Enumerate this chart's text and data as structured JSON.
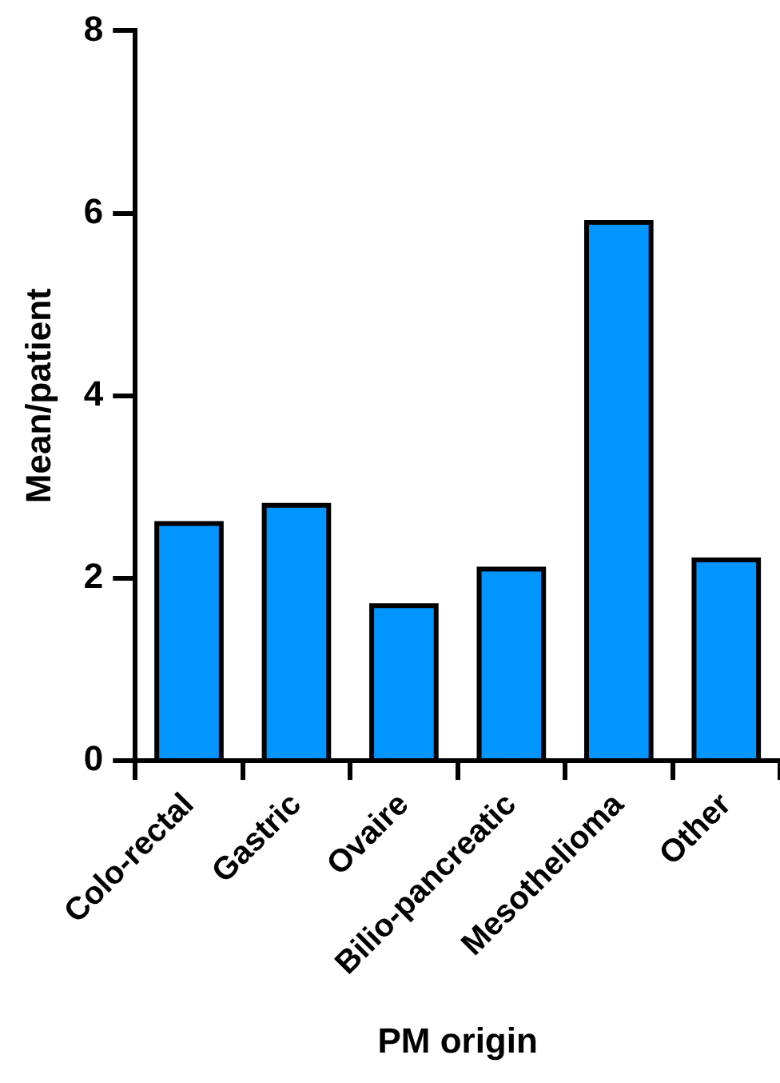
{
  "chart_data": {
    "type": "bar",
    "xlabel": "PM origin",
    "ylabel": "Mean/patient",
    "categories": [
      "Colo-rectal",
      "Gastric",
      "Ovaire",
      "Bilio-pancreatic",
      "Mesothelioma",
      "Other"
    ],
    "values": [
      2.6,
      2.8,
      1.7,
      2.1,
      5.9,
      2.2
    ],
    "color": "#0095ff",
    "ylim": [
      0,
      8
    ],
    "yticks": [
      0,
      2,
      4,
      6,
      8
    ],
    "grid": false,
    "legend": false
  }
}
